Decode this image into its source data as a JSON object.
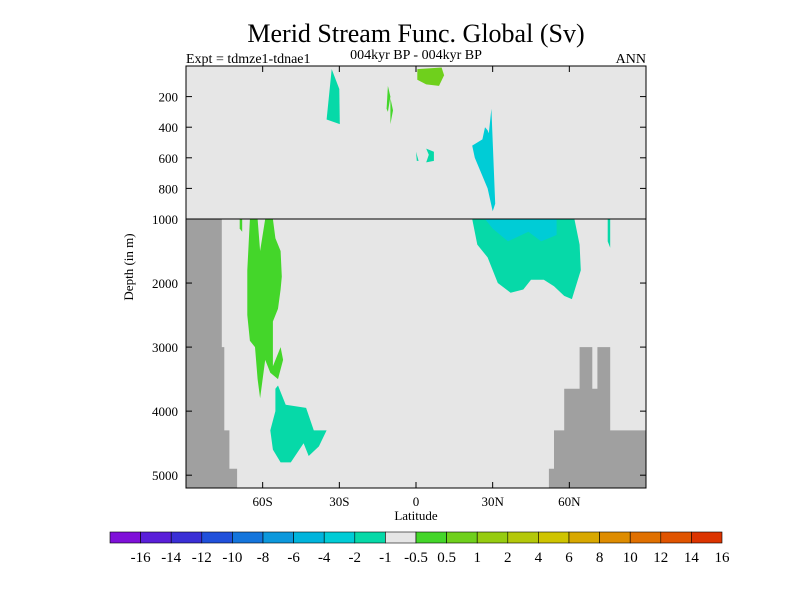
{
  "chart_data": {
    "type": "heatmap",
    "title": "Merid Stream Func. Global (Sv)",
    "subtitle_left": "Expt = tdmze1-tdnae1",
    "subtitle_center": "004kyr BP - 004kyr BP",
    "subtitle_right": "ANN",
    "xlabel": "Latitude",
    "ylabel": "Depth (in m)",
    "x_range": [
      -90,
      90
    ],
    "x_ticks": [
      {
        "value": -60,
        "label": "60S"
      },
      {
        "value": -30,
        "label": "30S"
      },
      {
        "value": 0,
        "label": "0"
      },
      {
        "value": 30,
        "label": "30N"
      },
      {
        "value": 60,
        "label": "60N"
      }
    ],
    "y_upper_range": [
      0,
      1000
    ],
    "y_upper_ticks": [
      {
        "value": 200,
        "label": "200"
      },
      {
        "value": 400,
        "label": "400"
      },
      {
        "value": 600,
        "label": "600"
      },
      {
        "value": 800,
        "label": "800"
      },
      {
        "value": 1000,
        "label": "1000"
      }
    ],
    "y_lower_range": [
      1000,
      5200
    ],
    "y_lower_ticks": [
      {
        "value": 2000,
        "label": "2000"
      },
      {
        "value": 3000,
        "label": "3000"
      },
      {
        "value": 4000,
        "label": "4000"
      },
      {
        "value": 5000,
        "label": "5000"
      }
    ],
    "colors": {
      "background": "#e6e6e6",
      "land": "#a0a0a0",
      "frame": "#000000"
    },
    "land_profile": [
      [
        -90,
        1000
      ],
      [
        -76,
        1000
      ],
      [
        -76,
        3000
      ],
      [
        -75,
        3000
      ],
      [
        -75,
        4300
      ],
      [
        -73,
        4300
      ],
      [
        -73,
        4900
      ],
      [
        -70,
        4900
      ],
      [
        -70,
        5200
      ],
      [
        -90,
        5200
      ]
    ],
    "land_profile_north": [
      [
        90,
        4300
      ],
      [
        76,
        4300
      ],
      [
        76,
        3000
      ],
      [
        71,
        3000
      ],
      [
        71,
        3650
      ],
      [
        69,
        3650
      ],
      [
        69,
        3000
      ],
      [
        64,
        3000
      ],
      [
        64,
        3650
      ],
      [
        58,
        3650
      ],
      [
        58,
        4300
      ],
      [
        54,
        4300
      ],
      [
        54,
        4900
      ],
      [
        52,
        4900
      ],
      [
        52,
        5200
      ],
      [
        90,
        5200
      ]
    ],
    "regions": [
      {
        "value": 0.75,
        "color": "#6fd01c",
        "points": [
          [
            0.5,
            20
          ],
          [
            10,
            10
          ],
          [
            11,
            60
          ],
          [
            9,
            130
          ],
          [
            4,
            120
          ],
          [
            0.5,
            90
          ]
        ]
      },
      {
        "value": 0.5,
        "color": "#44d62a",
        "points": [
          [
            -10,
            120
          ],
          [
            -10,
            210
          ],
          [
            -9,
            290
          ],
          [
            -10,
            380
          ],
          [
            -10,
            190
          ]
        ]
      },
      {
        "value": 0.5,
        "color": "#44d62a",
        "points": [
          [
            -11,
            130
          ],
          [
            -10,
            200
          ],
          [
            -11,
            300
          ],
          [
            -11.5,
            280
          ]
        ]
      },
      {
        "value": -0.5,
        "color": "#06d9a8",
        "points": [
          [
            -33,
            20
          ],
          [
            -30,
            150
          ],
          [
            -29.8,
            380
          ],
          [
            -35,
            350
          ]
        ]
      },
      {
        "value": -0.5,
        "color": "#06d9a8",
        "points": [
          [
            0,
            560
          ],
          [
            1,
            620
          ],
          [
            0.3,
            620
          ]
        ]
      },
      {
        "value": -0.5,
        "color": "#06d9a8",
        "points": [
          [
            4,
            540
          ],
          [
            7,
            560
          ],
          [
            7,
            620
          ],
          [
            4,
            630
          ],
          [
            5,
            580
          ]
        ]
      },
      {
        "value": -1,
        "color": "#00ccd6",
        "points": [
          [
            22,
            520
          ],
          [
            26,
            480
          ],
          [
            27,
            400
          ],
          [
            28,
            420
          ],
          [
            28.5,
            440
          ],
          [
            29.5,
            280
          ],
          [
            31,
            900
          ],
          [
            30,
            950
          ],
          [
            28,
            800
          ],
          [
            23,
            600
          ]
        ]
      },
      {
        "value": -0.5,
        "color": "#06d9a8",
        "points": [
          [
            22,
            1000
          ],
          [
            62,
            1000
          ],
          [
            64,
            1400
          ],
          [
            64.5,
            1800
          ],
          [
            61,
            2250
          ],
          [
            58,
            2200
          ],
          [
            54,
            2050
          ],
          [
            50,
            1950
          ],
          [
            45,
            1950
          ],
          [
            42,
            2100
          ],
          [
            37,
            2150
          ],
          [
            32,
            2000
          ],
          [
            28,
            1600
          ],
          [
            24,
            1400
          ]
        ]
      },
      {
        "value": -1,
        "color": "#00ccd6",
        "points": [
          [
            27,
            1000
          ],
          [
            55,
            1000
          ],
          [
            55,
            1250
          ],
          [
            49,
            1350
          ],
          [
            44,
            1200
          ],
          [
            36,
            1350
          ],
          [
            30,
            1150
          ]
        ]
      },
      {
        "value": -0.5,
        "color": "#06d9a8",
        "points": [
          [
            75,
            1000
          ],
          [
            76,
            1000
          ],
          [
            76,
            1450
          ],
          [
            75,
            1350
          ]
        ]
      },
      {
        "value": 0.5,
        "color": "#44d62a",
        "points": [
          [
            -65,
            1000
          ],
          [
            -62,
            1000
          ],
          [
            -61,
            1500
          ],
          [
            -59,
            1000
          ],
          [
            -56,
            1000
          ],
          [
            -55,
            1300
          ],
          [
            -53,
            1500
          ],
          [
            -52.5,
            1900
          ],
          [
            -53,
            2100
          ],
          [
            -54,
            2400
          ],
          [
            -56,
            2600
          ],
          [
            -56,
            3300
          ],
          [
            -53,
            3000
          ],
          [
            -52,
            3200
          ],
          [
            -54,
            3500
          ],
          [
            -57,
            3400
          ],
          [
            -59,
            3200
          ],
          [
            -61,
            3800
          ],
          [
            -62,
            3500
          ],
          [
            -63,
            3000
          ],
          [
            -65,
            2900
          ],
          [
            -66,
            2500
          ],
          [
            -66,
            1800
          ]
        ]
      },
      {
        "value": 0.5,
        "color": "#44d62a",
        "points": [
          [
            -69,
            1000
          ],
          [
            -68,
            1000
          ],
          [
            -68,
            1200
          ],
          [
            -69,
            1150
          ]
        ]
      },
      {
        "value": -0.5,
        "color": "#06d9a8",
        "points": [
          [
            -55,
            3650
          ],
          [
            -54,
            3600
          ],
          [
            -51,
            3900
          ],
          [
            -43,
            3950
          ],
          [
            -40,
            4300
          ],
          [
            -35,
            4300
          ],
          [
            -38,
            4550
          ],
          [
            -42,
            4700
          ],
          [
            -44,
            4500
          ],
          [
            -49,
            4800
          ],
          [
            -53,
            4800
          ],
          [
            -56,
            4600
          ],
          [
            -57,
            4300
          ],
          [
            -55,
            4000
          ]
        ]
      }
    ],
    "colorbar": {
      "labels": [
        "-16",
        "-14",
        "-12",
        "-10",
        "-8",
        "-6",
        "-4",
        "-2",
        "-1",
        "-0.5",
        "0.5",
        "1",
        "2",
        "4",
        "6",
        "8",
        "10",
        "12",
        "14",
        "16"
      ],
      "colors": [
        "#7f10d9",
        "#5a1fd9",
        "#3a2fd6",
        "#2050db",
        "#1475dc",
        "#0c98dc",
        "#00b4dc",
        "#00ccd6",
        "#06d9a8",
        "#e6e6e6",
        "#44d62a",
        "#6fd01c",
        "#96cc10",
        "#b4c80a",
        "#cfc400",
        "#d8a800",
        "#de8c00",
        "#e07000",
        "#e05400",
        "#dc3400"
      ]
    }
  }
}
